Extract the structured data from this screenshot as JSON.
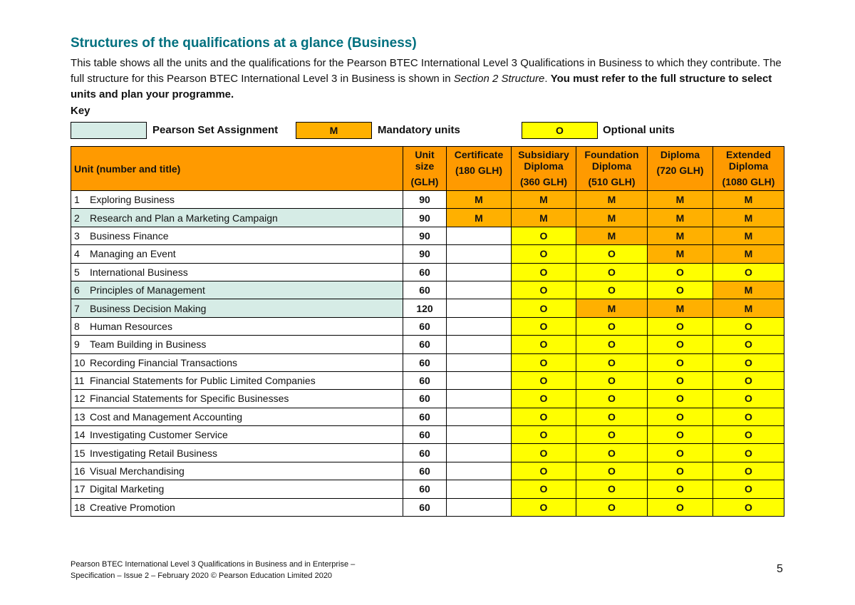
{
  "title": "Structures of the qualifications at a glance (Business)",
  "intro": {
    "before": "This table shows all the units and the qualifications for the Pearson BTEC International Level 3 Qualifications in Business to which they contribute. The full structure for this Pearson BTEC International Level 3 in Business is shown in ",
    "italic": "Section 2 Structure",
    "middle": ". ",
    "bold": "You must refer to the full structure to select units and plan your programme."
  },
  "key": {
    "label": "Key",
    "items": [
      {
        "label": "Pearson Set Assignment"
      },
      {
        "symbol": "M",
        "label": "Mandatory units"
      },
      {
        "symbol": "O",
        "label": "Optional units"
      }
    ]
  },
  "table": {
    "header": [
      {
        "label": "Unit (number and title)"
      },
      {
        "label": "Unit size",
        "sub": "(GLH)"
      },
      {
        "label": "Certificate",
        "sub": "(180 GLH)"
      },
      {
        "label": "Subsidiary Diploma",
        "sub": "(360 GLH)"
      },
      {
        "label": "Foundation Diploma",
        "sub": "(510 GLH)"
      },
      {
        "label": "Diploma",
        "sub": "(720 GLH)"
      },
      {
        "label": "Extended Diploma",
        "sub": "(1080 GLH)"
      }
    ],
    "rows": [
      {
        "number": 1,
        "title": "Exploring Business",
        "size": 90,
        "set_assignment": false,
        "cells": [
          "M",
          "M",
          "M",
          "M",
          "M"
        ]
      },
      {
        "number": 2,
        "title": "Research and Plan a Marketing Campaign",
        "size": 90,
        "set_assignment": true,
        "cells": [
          "M",
          "M",
          "M",
          "M",
          "M"
        ]
      },
      {
        "number": 3,
        "title": "Business Finance",
        "size": 90,
        "set_assignment": false,
        "cells": [
          null,
          "O",
          "M",
          "M",
          "M"
        ]
      },
      {
        "number": 4,
        "title": "Managing an Event",
        "size": 90,
        "set_assignment": false,
        "cells": [
          null,
          "O",
          "O",
          "M",
          "M"
        ]
      },
      {
        "number": 5,
        "title": "International Business",
        "size": 60,
        "set_assignment": false,
        "cells": [
          null,
          "O",
          "O",
          "O",
          "O"
        ]
      },
      {
        "number": 6,
        "title": "Principles of Management",
        "size": 60,
        "set_assignment": true,
        "cells": [
          null,
          "O",
          "O",
          "O",
          "M"
        ]
      },
      {
        "number": 7,
        "title": "Business Decision Making",
        "size": 120,
        "set_assignment": true,
        "cells": [
          null,
          "O",
          "M",
          "M",
          "M"
        ]
      },
      {
        "number": 8,
        "title": "Human Resources",
        "size": 60,
        "set_assignment": false,
        "cells": [
          null,
          "O",
          "O",
          "O",
          "O"
        ]
      },
      {
        "number": 9,
        "title": "Team Building in Business",
        "size": 60,
        "set_assignment": false,
        "cells": [
          null,
          "O",
          "O",
          "O",
          "O"
        ]
      },
      {
        "number": 10,
        "title": "Recording Financial Transactions",
        "size": 60,
        "set_assignment": false,
        "cells": [
          null,
          "O",
          "O",
          "O",
          "O"
        ]
      },
      {
        "number": 11,
        "title": "Financial Statements for Public Limited Companies",
        "size": 60,
        "set_assignment": false,
        "cells": [
          null,
          "O",
          "O",
          "O",
          "O"
        ]
      },
      {
        "number": 12,
        "title": "Financial Statements for Specific Businesses",
        "size": 60,
        "set_assignment": false,
        "cells": [
          null,
          "O",
          "O",
          "O",
          "O"
        ]
      },
      {
        "number": 13,
        "title": "Cost and Management Accounting",
        "size": 60,
        "set_assignment": false,
        "cells": [
          null,
          "O",
          "O",
          "O",
          "O"
        ]
      },
      {
        "number": 14,
        "title": "Investigating Customer Service",
        "size": 60,
        "set_assignment": false,
        "cells": [
          null,
          "O",
          "O",
          "O",
          "O"
        ]
      },
      {
        "number": 15,
        "title": "Investigating Retail Business",
        "size": 60,
        "set_assignment": false,
        "cells": [
          null,
          "O",
          "O",
          "O",
          "O"
        ]
      },
      {
        "number": 16,
        "title": "Visual Merchandising",
        "size": 60,
        "set_assignment": false,
        "cells": [
          null,
          "O",
          "O",
          "O",
          "O"
        ]
      },
      {
        "number": 17,
        "title": "Digital Marketing",
        "size": 60,
        "set_assignment": false,
        "cells": [
          null,
          "O",
          "O",
          "O",
          "O"
        ]
      },
      {
        "number": 18,
        "title": "Creative Promotion",
        "size": 60,
        "set_assignment": false,
        "cells": [
          null,
          "O",
          "O",
          "O",
          "O"
        ]
      }
    ]
  },
  "footer": {
    "line1": "Pearson BTEC International Level 3 Qualifications in Business and in Enterprise –",
    "line2": "Specification – Issue 2 – February 2020 © Pearson Education Limited 2020",
    "page": 5
  }
}
